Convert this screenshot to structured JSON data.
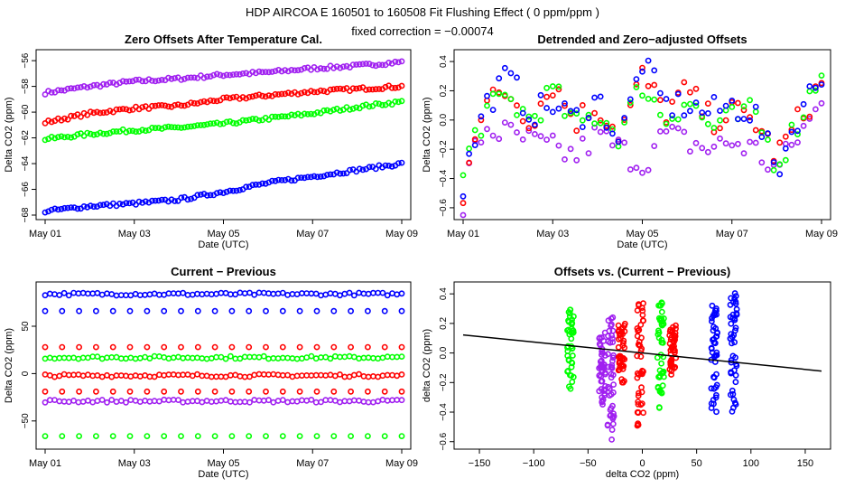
{
  "header": {
    "main_title": "HDP   AIRCOA E   160501 to 160508   Fit Flushing Effect ( 0 ppm/ppm )",
    "subtitle": "fixed correction = −0.00074"
  },
  "colors": {
    "purple": "#a020f0",
    "red": "#ff0000",
    "green": "#00ff00",
    "blue": "#0000ff",
    "fit_line": "#000000"
  },
  "chart_data": [
    {
      "id": "zero-offsets",
      "type": "scatter",
      "title": "Zero Offsets After Temperature Cal.",
      "xlabel": "Date (UTC)",
      "ylabel": "Delta CO2 (ppm)",
      "xlim": [
        0,
        8
      ],
      "ylim": [
        -68,
        -55.5
      ],
      "xticks": [
        0,
        2,
        4,
        6,
        8
      ],
      "xtick_labels": [
        "May 01",
        "May 03",
        "May 05",
        "May 07",
        "May 09"
      ],
      "yticks": [
        -68,
        -66,
        -64,
        -62,
        -60,
        -58,
        -56
      ],
      "ytick_labels": [
        "−68",
        "−66",
        "−64",
        "−62",
        "−60",
        "−58",
        "−56"
      ],
      "series": [
        {
          "name": "purple",
          "color": "#a020f0",
          "x": [
            0,
            1,
            2,
            3,
            4,
            5,
            6,
            7,
            8
          ],
          "y": [
            -58.5,
            -58.0,
            -57.6,
            -57.4,
            -57.1,
            -56.9,
            -56.6,
            -56.4,
            -56.1
          ]
        },
        {
          "name": "red",
          "color": "#ff0000",
          "x": [
            0,
            1,
            2,
            3,
            4,
            5,
            6,
            7,
            8
          ],
          "y": [
            -60.8,
            -60.1,
            -59.7,
            -59.5,
            -59.0,
            -58.7,
            -58.4,
            -58.2,
            -58.0
          ]
        },
        {
          "name": "green",
          "color": "#00ff00",
          "x": [
            0,
            1,
            2,
            3,
            4,
            5,
            6,
            7,
            8
          ],
          "y": [
            -62.1,
            -61.7,
            -61.4,
            -61.2,
            -60.9,
            -60.5,
            -60.1,
            -59.6,
            -59.2
          ]
        },
        {
          "name": "blue",
          "color": "#0000ff",
          "x": [
            0,
            1,
            2,
            3,
            4,
            5,
            6,
            7,
            8
          ],
          "y": [
            -67.7,
            -67.3,
            -67.1,
            -66.8,
            -66.2,
            -65.5,
            -65.0,
            -64.5,
            -64.0
          ]
        }
      ]
    },
    {
      "id": "detrended-offsets",
      "type": "scatter",
      "title": "Detrended and Zero−adjusted Offsets",
      "xlabel": "Date (UTC)",
      "ylabel": "Delta CO2 (ppm)",
      "xlim": [
        0,
        8
      ],
      "ylim": [
        -0.65,
        0.45
      ],
      "xticks": [
        0,
        2,
        4,
        6,
        8
      ],
      "xtick_labels": [
        "May 01",
        "May 03",
        "May 05",
        "May 07",
        "May 09"
      ],
      "yticks": [
        -0.6,
        -0.4,
        -0.2,
        0.0,
        0.2,
        0.4
      ],
      "ytick_labels": [
        "−0.6",
        "−0.4",
        "−0.2",
        "0.0",
        "0.2",
        "0.4"
      ],
      "series": [
        {
          "name": "purple",
          "color": "#a020f0",
          "x": [
            0,
            0.2,
            0.5,
            1,
            1.5,
            2,
            2.5,
            3,
            3.5,
            4,
            4.5,
            5,
            5.5,
            6,
            6.5,
            7,
            7.5,
            8
          ],
          "y": [
            -0.6,
            -0.25,
            -0.05,
            -0.1,
            -0.15,
            -0.2,
            -0.25,
            -0.1,
            -0.2,
            -0.3,
            -0.1,
            -0.15,
            -0.2,
            -0.15,
            -0.2,
            -0.35,
            -0.1,
            0.1
          ]
        },
        {
          "name": "red",
          "color": "#ff0000",
          "x": [
            0,
            0.2,
            0.5,
            1,
            1.5,
            2,
            2.5,
            3,
            3.5,
            4,
            4.5,
            5,
            5.5,
            6,
            6.5,
            7,
            7.5,
            8
          ],
          "y": [
            -0.5,
            -0.1,
            0.1,
            0.2,
            0.0,
            0.25,
            0.0,
            0.1,
            -0.1,
            0.3,
            0.05,
            0.2,
            0.0,
            0.05,
            0.0,
            -0.25,
            0.0,
            0.25
          ]
        },
        {
          "name": "green",
          "color": "#00ff00",
          "x": [
            0,
            0.2,
            0.5,
            1,
            1.5,
            2,
            2.5,
            3,
            3.5,
            4,
            4.5,
            5,
            5.5,
            6,
            6.5,
            7,
            7.5,
            8
          ],
          "y": [
            -0.4,
            -0.15,
            0.05,
            0.15,
            0.0,
            0.2,
            -0.05,
            0.05,
            -0.1,
            0.25,
            0.0,
            0.15,
            -0.05,
            0.0,
            0.05,
            -0.3,
            0.0,
            0.35
          ]
        },
        {
          "name": "blue",
          "color": "#0000ff",
          "x": [
            0,
            0.2,
            0.5,
            1,
            1.5,
            2,
            2.5,
            3,
            3.5,
            4,
            4.5,
            5,
            5.5,
            6,
            6.5,
            7,
            7.5,
            8
          ],
          "y": [
            -0.45,
            -0.2,
            0.1,
            0.3,
            0.05,
            0.1,
            0.0,
            0.15,
            -0.15,
            0.4,
            0.1,
            0.1,
            0.05,
            0.1,
            0.05,
            -0.35,
            0.05,
            0.3
          ]
        }
      ]
    },
    {
      "id": "current-previous",
      "type": "scatter",
      "title": "Current − Previous",
      "xlabel": "Date (UTC)",
      "ylabel": "Delta CO2 (ppm)",
      "xlim": [
        0,
        8
      ],
      "ylim": [
        -75,
        92
      ],
      "xticks": [
        0,
        2,
        4,
        6,
        8
      ],
      "xtick_labels": [
        "May 01",
        "May 03",
        "May 05",
        "May 07",
        "May 09"
      ],
      "yticks": [
        -50,
        0,
        50
      ],
      "ytick_labels": [
        "−50",
        "0",
        "50"
      ],
      "levels": [
        {
          "name": "blue-high",
          "color": "#0000ff",
          "y": 84
        },
        {
          "name": "blue-low",
          "color": "#0000ff",
          "y": 66
        },
        {
          "name": "red-high",
          "color": "#ff0000",
          "y": 28
        },
        {
          "name": "green-high",
          "color": "#00ff00",
          "y": 17
        },
        {
          "name": "red-mid",
          "color": "#ff0000",
          "y": -2
        },
        {
          "name": "red-low",
          "color": "#ff0000",
          "y": -19
        },
        {
          "name": "purple-mid",
          "color": "#a020f0",
          "y": -29
        },
        {
          "name": "green-low",
          "color": "#00ff00",
          "y": -66
        }
      ]
    },
    {
      "id": "offsets-vs-diff",
      "type": "scatter",
      "title": "Offsets vs. (Current − Previous)",
      "xlabel": "delta CO2 (ppm)",
      "ylabel": "delta CO2 (ppm)",
      "xlim": [
        -165,
        165
      ],
      "ylim": [
        -0.62,
        0.45
      ],
      "xticks": [
        -150,
        -100,
        -50,
        0,
        50,
        100,
        150
      ],
      "xtick_labels": [
        "−150",
        "−100",
        "−50",
        "0",
        "50",
        "100",
        "150"
      ],
      "yticks": [
        -0.6,
        -0.4,
        -0.2,
        0.0,
        0.2,
        0.4
      ],
      "ytick_labels": [
        "−0.6",
        "−0.4",
        "−0.2",
        "0.0",
        "0.2",
        "0.4"
      ],
      "clusters": [
        {
          "color": "#00ff00",
          "x": -66,
          "ymin": -0.25,
          "ymax": 0.3
        },
        {
          "color": "#a020f0",
          "x": -37,
          "ymin": -0.35,
          "ymax": 0.15
        },
        {
          "color": "#a020f0",
          "x": -29,
          "ymin": -0.6,
          "ymax": 0.25
        },
        {
          "color": "#ff0000",
          "x": -19,
          "ymin": -0.2,
          "ymax": 0.2
        },
        {
          "color": "#ff0000",
          "x": -2,
          "ymin": -0.5,
          "ymax": 0.35
        },
        {
          "color": "#ff0000",
          "x": 28,
          "ymin": -0.15,
          "ymax": 0.2
        },
        {
          "color": "#00ff00",
          "x": 17,
          "ymin": -0.4,
          "ymax": 0.35
        },
        {
          "color": "#0000ff",
          "x": 66,
          "ymin": -0.4,
          "ymax": 0.35
        },
        {
          "color": "#0000ff",
          "x": 84,
          "ymin": -0.4,
          "ymax": 0.42
        }
      ],
      "fit_line": {
        "slope": -0.00074,
        "intercept": 0.0
      }
    }
  ]
}
